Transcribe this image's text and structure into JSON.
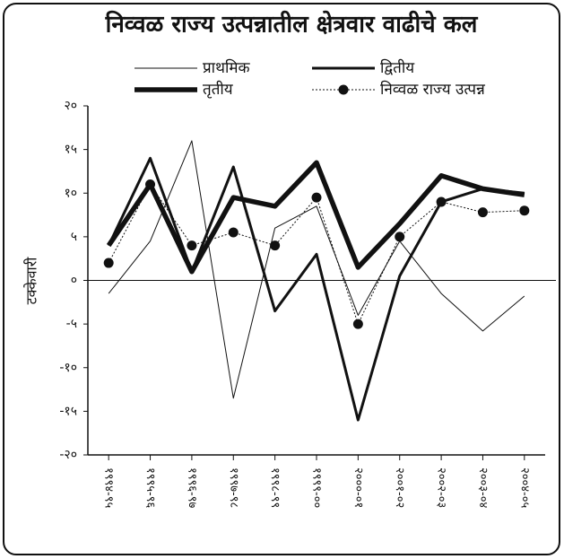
{
  "chart_data": {
    "type": "line",
    "title": "निव्वळ राज्य उत्पन्नातील क्षेत्रवार वाढीचे कल",
    "y_label": "टक्केवारी",
    "categories": [
      "१९९४-९५",
      "१९९५-९६",
      "१९९६-९७",
      "१९९७-९८",
      "१९९८-९९",
      "१९९९-००",
      "२०००-०१",
      "२००१-०२",
      "२००२-०३",
      "२००३-०४",
      "२००४-०५"
    ],
    "series": [
      {
        "name": "प्राथमिक",
        "color": "#111111",
        "line_width": 1,
        "values": [
          -1.5,
          4.5,
          16,
          -13.5,
          6,
          8.5,
          -4,
          4.5,
          -1.5,
          -5.8,
          -1.8
        ]
      },
      {
        "name": "द्वितीय",
        "color": "#111111",
        "line_width": 3,
        "values": [
          4,
          14,
          1,
          13,
          -3.5,
          3,
          -16,
          0.5,
          9,
          10.5,
          10
        ]
      },
      {
        "name": "तृतीय",
        "color": "#111111",
        "line_width": 5.5,
        "values": [
          4,
          11,
          1,
          9.5,
          8.5,
          13.5,
          1.5,
          6.5,
          12,
          10.5,
          9.8
        ]
      },
      {
        "name": "निव्वळ राज्य उत्पन्न",
        "color": "#111111",
        "line_width": 1,
        "dashed": true,
        "marker": "circle",
        "values": [
          2,
          11,
          4,
          5.5,
          4,
          9.5,
          -5,
          5,
          9,
          7.8,
          8
        ]
      }
    ],
    "ylim": [
      -20,
      20
    ],
    "yticks": [
      {
        "value": 20,
        "label": "२०"
      },
      {
        "value": 15,
        "label": "१५"
      },
      {
        "value": 10,
        "label": "१०"
      },
      {
        "value": 5,
        "label": "५"
      },
      {
        "value": 0,
        "label": "०"
      },
      {
        "value": -5,
        "label": "-५"
      },
      {
        "value": -10,
        "label": "-१०"
      },
      {
        "value": -15,
        "label": "-१५"
      },
      {
        "value": -20,
        "label": "-२०"
      }
    ]
  }
}
